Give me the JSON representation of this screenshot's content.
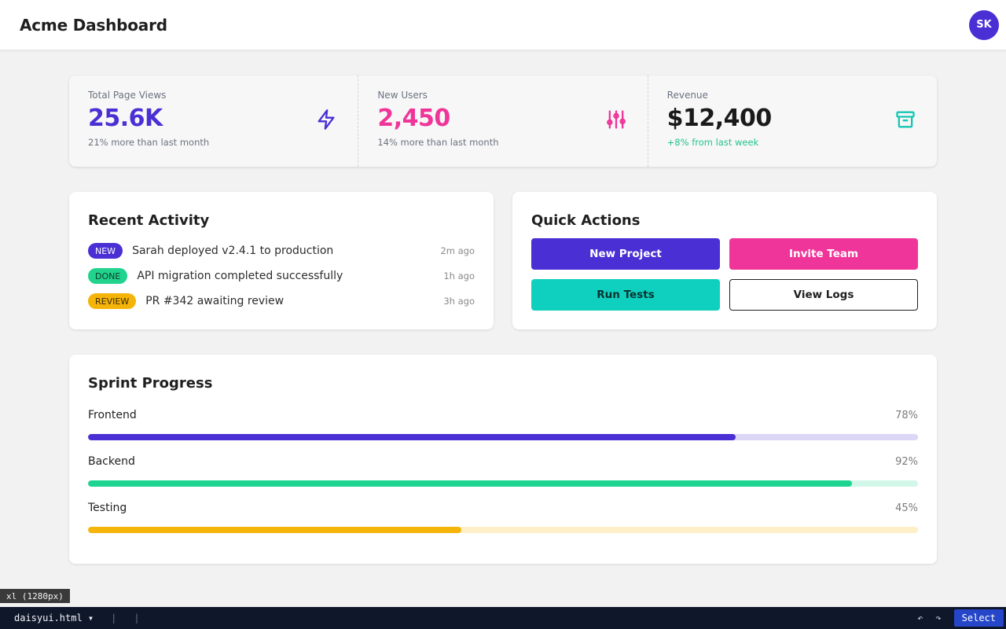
{
  "navbar": {
    "brand": "Acme Dashboard",
    "avatar_initials": "SK"
  },
  "stats": [
    {
      "title": "Total Page Views",
      "value": "25.6K",
      "desc": "21% more than last month",
      "icon": "lightning-bolt-icon",
      "value_color": "#4a2fd4",
      "desc_color": "#6b7280"
    },
    {
      "title": "New Users",
      "value": "2,450",
      "desc": "14% more than last month",
      "icon": "sliders-icon",
      "value_color": "#f0359a",
      "desc_color": "#6b7280"
    },
    {
      "title": "Revenue",
      "value": "$12,400",
      "desc": "+8% from last week",
      "icon": "archive-box-icon",
      "value_color": "#1a1a1a",
      "desc_color": "#22c38e"
    }
  ],
  "activity": {
    "title": "Recent Activity",
    "items": [
      {
        "badge": "NEW",
        "text": "Sarah deployed v2.4.1 to production",
        "time": "2m ago",
        "badge_bg": "#4a2fd4",
        "badge_fg": "#ffffff"
      },
      {
        "badge": "DONE",
        "text": "API migration completed successfully",
        "time": "1h ago",
        "badge_bg": "#22d38e",
        "badge_fg": "#0b3b28"
      },
      {
        "badge": "REVIEW",
        "text": "PR #342 awaiting review",
        "time": "3h ago",
        "badge_bg": "#f5b40a",
        "badge_fg": "#3a2a00"
      }
    ]
  },
  "actions": {
    "title": "Quick Actions",
    "buttons": [
      {
        "label": "New Project",
        "bg": "#4a2fd4",
        "fg": "#ffffff"
      },
      {
        "label": "Invite Team",
        "bg": "#f0359a",
        "fg": "#ffffff"
      },
      {
        "label": "Run Tests",
        "bg": "#0fd0bf",
        "fg": "#06332f"
      },
      {
        "label": "View Logs",
        "bg": "#ffffff",
        "fg": "#1f1f1f"
      }
    ]
  },
  "sprint": {
    "title": "Sprint Progress",
    "items": [
      {
        "label": "Frontend",
        "percent": 78,
        "pct_text": "78%",
        "fill": "#4a2fd4",
        "track": "#dcd6f7"
      },
      {
        "label": "Backend",
        "percent": 92,
        "pct_text": "92%",
        "fill": "#1fd491",
        "track": "#d2f6e8"
      },
      {
        "label": "Testing",
        "percent": 45,
        "pct_text": "45%",
        "fill": "#f5b40a",
        "track": "#fdefc8"
      }
    ]
  },
  "devbar": {
    "breakpoint": "xl (1280px)",
    "file": "daisyui.html ▾",
    "sep1": "|",
    "sep2": "|",
    "undo": "↶",
    "redo": "↷",
    "select_label": "Select"
  }
}
